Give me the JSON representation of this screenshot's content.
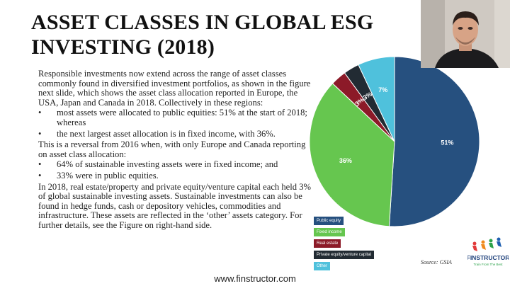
{
  "title_lines": [
    "ASSET CLASSES IN GLOBAL ESG",
    "INVESTING (2018)"
  ],
  "paragraphs": {
    "p1": "Responsible investments now extend across the range of asset classes commonly found in diversified investment portfolios, as shown in the figure next slide, which shows the asset class allocation reported in Europe, the USA, Japan and Canada in 2018. Collectively in these regions:",
    "b1": "most assets were allocated to public equities: 51% at the start of 2018; whereas",
    "b2": "the next largest asset allocation is in fixed income, with 36%.",
    "p2": "This is a reversal from 2016 when, with only Europe and Canada reporting on asset class allocation:",
    "b3": "64% of sustainable investing assets were in fixed income; and",
    "b4": "33% were in public equities.",
    "p3": "In 2018, real estate/property and private equity/venture capital each held 3% of global sustainable investing assets. Sustainable investments can also be found in hedge funds, cash or depository vehicles, commodities and infrastructure. These assets are reflected in the ‘other’ assets category. For further details, see the Figure on right-hand side."
  },
  "bullet_symbol": "•",
  "chart_data": {
    "type": "pie",
    "slices": [
      {
        "label": "Public equity",
        "value": 51,
        "display": "51%",
        "color": "#26507f"
      },
      {
        "label": "Fixed income",
        "value": 36,
        "display": "36%",
        "color": "#66c64f"
      },
      {
        "label": "Real estate",
        "value": 3,
        "display": "3%",
        "color": "#8c1a28"
      },
      {
        "label": "Private equity/venture capital",
        "value": 3,
        "display": "3%",
        "color": "#222b33"
      },
      {
        "label": "Other",
        "value": 7,
        "display": "7%",
        "color": "#4fc1dc"
      }
    ],
    "legend_position": "bottom-left"
  },
  "source": "Source: GSIA",
  "url": "www.finstructor.com",
  "logo": {
    "name": "FINSTRUCTOR",
    "tagline": "Train From The Best"
  }
}
